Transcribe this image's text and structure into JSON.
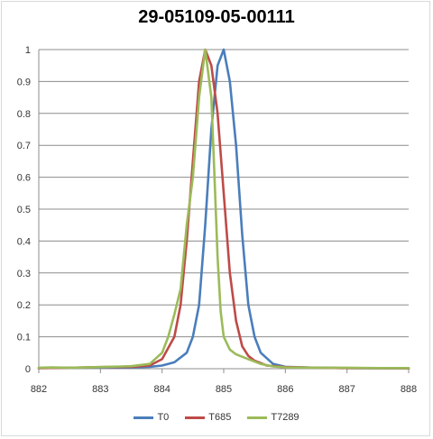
{
  "chart_data": {
    "type": "line",
    "title": "29-05109-05-00111",
    "xlabel": "",
    "ylabel": "",
    "xlim": [
      882,
      888
    ],
    "ylim": [
      0,
      1
    ],
    "x_ticks": [
      "882",
      "883",
      "884",
      "885",
      "886",
      "887",
      "888"
    ],
    "y_ticks": [
      "0",
      "0.1",
      "0.2",
      "0.3",
      "0.4",
      "0.5",
      "0.6",
      "0.7",
      "0.8",
      "0.9",
      "1"
    ],
    "grid": "horizontal",
    "legend_position": "bottom",
    "series": [
      {
        "name": "T0",
        "color": "#4a7ebb",
        "x": [
          882,
          882.5,
          883,
          883.5,
          883.8,
          884,
          884.2,
          884.4,
          884.5,
          884.6,
          884.7,
          884.8,
          884.9,
          885,
          885.1,
          885.2,
          885.3,
          885.4,
          885.5,
          885.6,
          885.8,
          886,
          886.5,
          887,
          887.5,
          888
        ],
        "values": [
          0.002,
          0.003,
          0.004,
          0.004,
          0.006,
          0.01,
          0.02,
          0.05,
          0.1,
          0.2,
          0.45,
          0.75,
          0.95,
          1.0,
          0.9,
          0.7,
          0.42,
          0.2,
          0.1,
          0.05,
          0.015,
          0.006,
          0.003,
          0.002,
          0.001,
          0.001
        ]
      },
      {
        "name": "T685",
        "color": "#be4b48",
        "x": [
          882,
          882.5,
          883,
          883.5,
          883.8,
          884,
          884.2,
          884.3,
          884.4,
          884.5,
          884.6,
          884.7,
          884.8,
          884.9,
          885,
          885.1,
          885.2,
          885.3,
          885.4,
          885.5,
          885.7,
          886,
          886.5,
          887,
          888
        ],
        "values": [
          0.002,
          0.003,
          0.005,
          0.006,
          0.01,
          0.03,
          0.1,
          0.2,
          0.4,
          0.65,
          0.9,
          1.0,
          0.95,
          0.8,
          0.55,
          0.3,
          0.15,
          0.07,
          0.04,
          0.025,
          0.01,
          0.005,
          0.003,
          0.002,
          0.001
        ]
      },
      {
        "name": "T7289",
        "color": "#9bbb59",
        "x": [
          882,
          882.2,
          882.5,
          883,
          883.5,
          883.8,
          884,
          884.1,
          884.2,
          884.3,
          884.4,
          884.5,
          884.6,
          884.7,
          884.8,
          884.85,
          884.9,
          884.95,
          885,
          885.1,
          885.2,
          885.4,
          885.6,
          885.8,
          886,
          886.5,
          887,
          887.5,
          888
        ],
        "values": [
          0.003,
          0.004,
          0.003,
          0.005,
          0.008,
          0.015,
          0.05,
          0.1,
          0.17,
          0.25,
          0.45,
          0.6,
          0.85,
          1.0,
          0.85,
          0.6,
          0.35,
          0.18,
          0.1,
          0.06,
          0.045,
          0.03,
          0.015,
          0.007,
          0.004,
          0.003,
          0.003,
          0.002,
          0.002
        ]
      }
    ]
  }
}
